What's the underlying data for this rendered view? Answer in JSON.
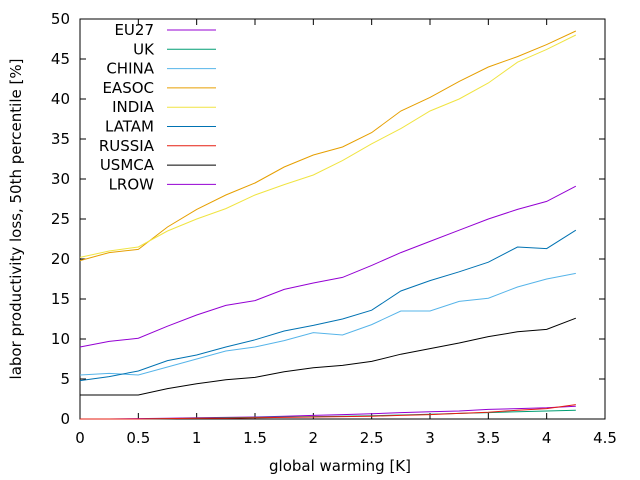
{
  "chart_data": {
    "type": "line",
    "title": "",
    "xlabel": "global warming [K]",
    "ylabel": "labor productivity loss, 50th percentile [%]",
    "xlim": [
      0,
      4.5
    ],
    "ylim": [
      0,
      50
    ],
    "xticks": [
      "0",
      "0.5",
      "1",
      "1.5",
      "2",
      "2.5",
      "3",
      "3.5",
      "4",
      "4.5"
    ],
    "yticks": [
      "0",
      "5",
      "10",
      "15",
      "20",
      "25",
      "30",
      "35",
      "40",
      "45",
      "50"
    ],
    "grid": false,
    "legend_position": "top-left",
    "x": [
      0,
      0.25,
      0.5,
      0.75,
      1,
      1.25,
      1.5,
      1.75,
      2,
      2.25,
      2.5,
      2.75,
      3,
      3.25,
      3.5,
      3.75,
      4,
      4.25
    ],
    "series": [
      {
        "name": "EU27",
        "color": "#9400d3",
        "values": [
          0.0,
          0.0,
          0.05,
          0.1,
          0.15,
          0.2,
          0.25,
          0.35,
          0.45,
          0.55,
          0.65,
          0.8,
          0.9,
          1.0,
          1.2,
          1.3,
          1.4,
          1.6
        ]
      },
      {
        "name": "UK",
        "color": "#009e73",
        "values": [
          0.0,
          0.0,
          0.0,
          0.05,
          0.1,
          0.15,
          0.2,
          0.25,
          0.3,
          0.35,
          0.4,
          0.5,
          0.6,
          0.7,
          0.8,
          0.9,
          1.0,
          1.1
        ]
      },
      {
        "name": "CHINA",
        "color": "#56b4e9",
        "values": [
          5.5,
          5.7,
          5.5,
          6.5,
          7.5,
          8.5,
          9.0,
          9.8,
          10.8,
          10.5,
          11.8,
          13.5,
          13.5,
          14.7,
          15.1,
          16.5,
          17.5,
          18.2
        ]
      },
      {
        "name": "EASOC",
        "color": "#e69f00",
        "values": [
          19.8,
          20.8,
          21.2,
          24.0,
          26.2,
          28.0,
          29.5,
          31.5,
          33.0,
          34.0,
          35.8,
          38.5,
          40.2,
          42.2,
          44.0,
          45.3,
          46.8,
          48.5
        ]
      },
      {
        "name": "INDIA",
        "color": "#f0e442",
        "values": [
          20.2,
          21.0,
          21.5,
          23.5,
          25.0,
          26.3,
          28.0,
          29.3,
          30.5,
          32.3,
          34.4,
          36.3,
          38.5,
          40.0,
          42.0,
          44.6,
          46.2,
          48.0
        ]
      },
      {
        "name": "LATAM",
        "color": "#0072b2",
        "values": [
          4.8,
          5.3,
          6.0,
          7.3,
          8.0,
          9.0,
          9.9,
          11.0,
          11.7,
          12.5,
          13.6,
          16.0,
          17.3,
          18.4,
          19.6,
          21.5,
          21.3,
          23.6
        ]
      },
      {
        "name": "RUSSIA",
        "color": "#e51e10",
        "values": [
          0.0,
          0.0,
          0.0,
          0.05,
          0.1,
          0.1,
          0.15,
          0.2,
          0.25,
          0.3,
          0.35,
          0.45,
          0.55,
          0.7,
          0.85,
          1.1,
          1.3,
          1.8
        ]
      },
      {
        "name": "USMCA",
        "color": "#000000",
        "values": [
          3.0,
          3.0,
          3.0,
          3.8,
          4.4,
          4.9,
          5.2,
          5.9,
          6.4,
          6.7,
          7.2,
          8.1,
          8.8,
          9.5,
          10.3,
          10.9,
          11.2,
          12.6
        ]
      },
      {
        "name": "LROW",
        "color": "#9400d3",
        "values": [
          9.0,
          9.7,
          10.1,
          11.6,
          13.0,
          14.2,
          14.8,
          16.2,
          17.0,
          17.7,
          19.2,
          20.8,
          22.2,
          23.6,
          25.0,
          26.2,
          27.2,
          29.1
        ]
      }
    ]
  }
}
